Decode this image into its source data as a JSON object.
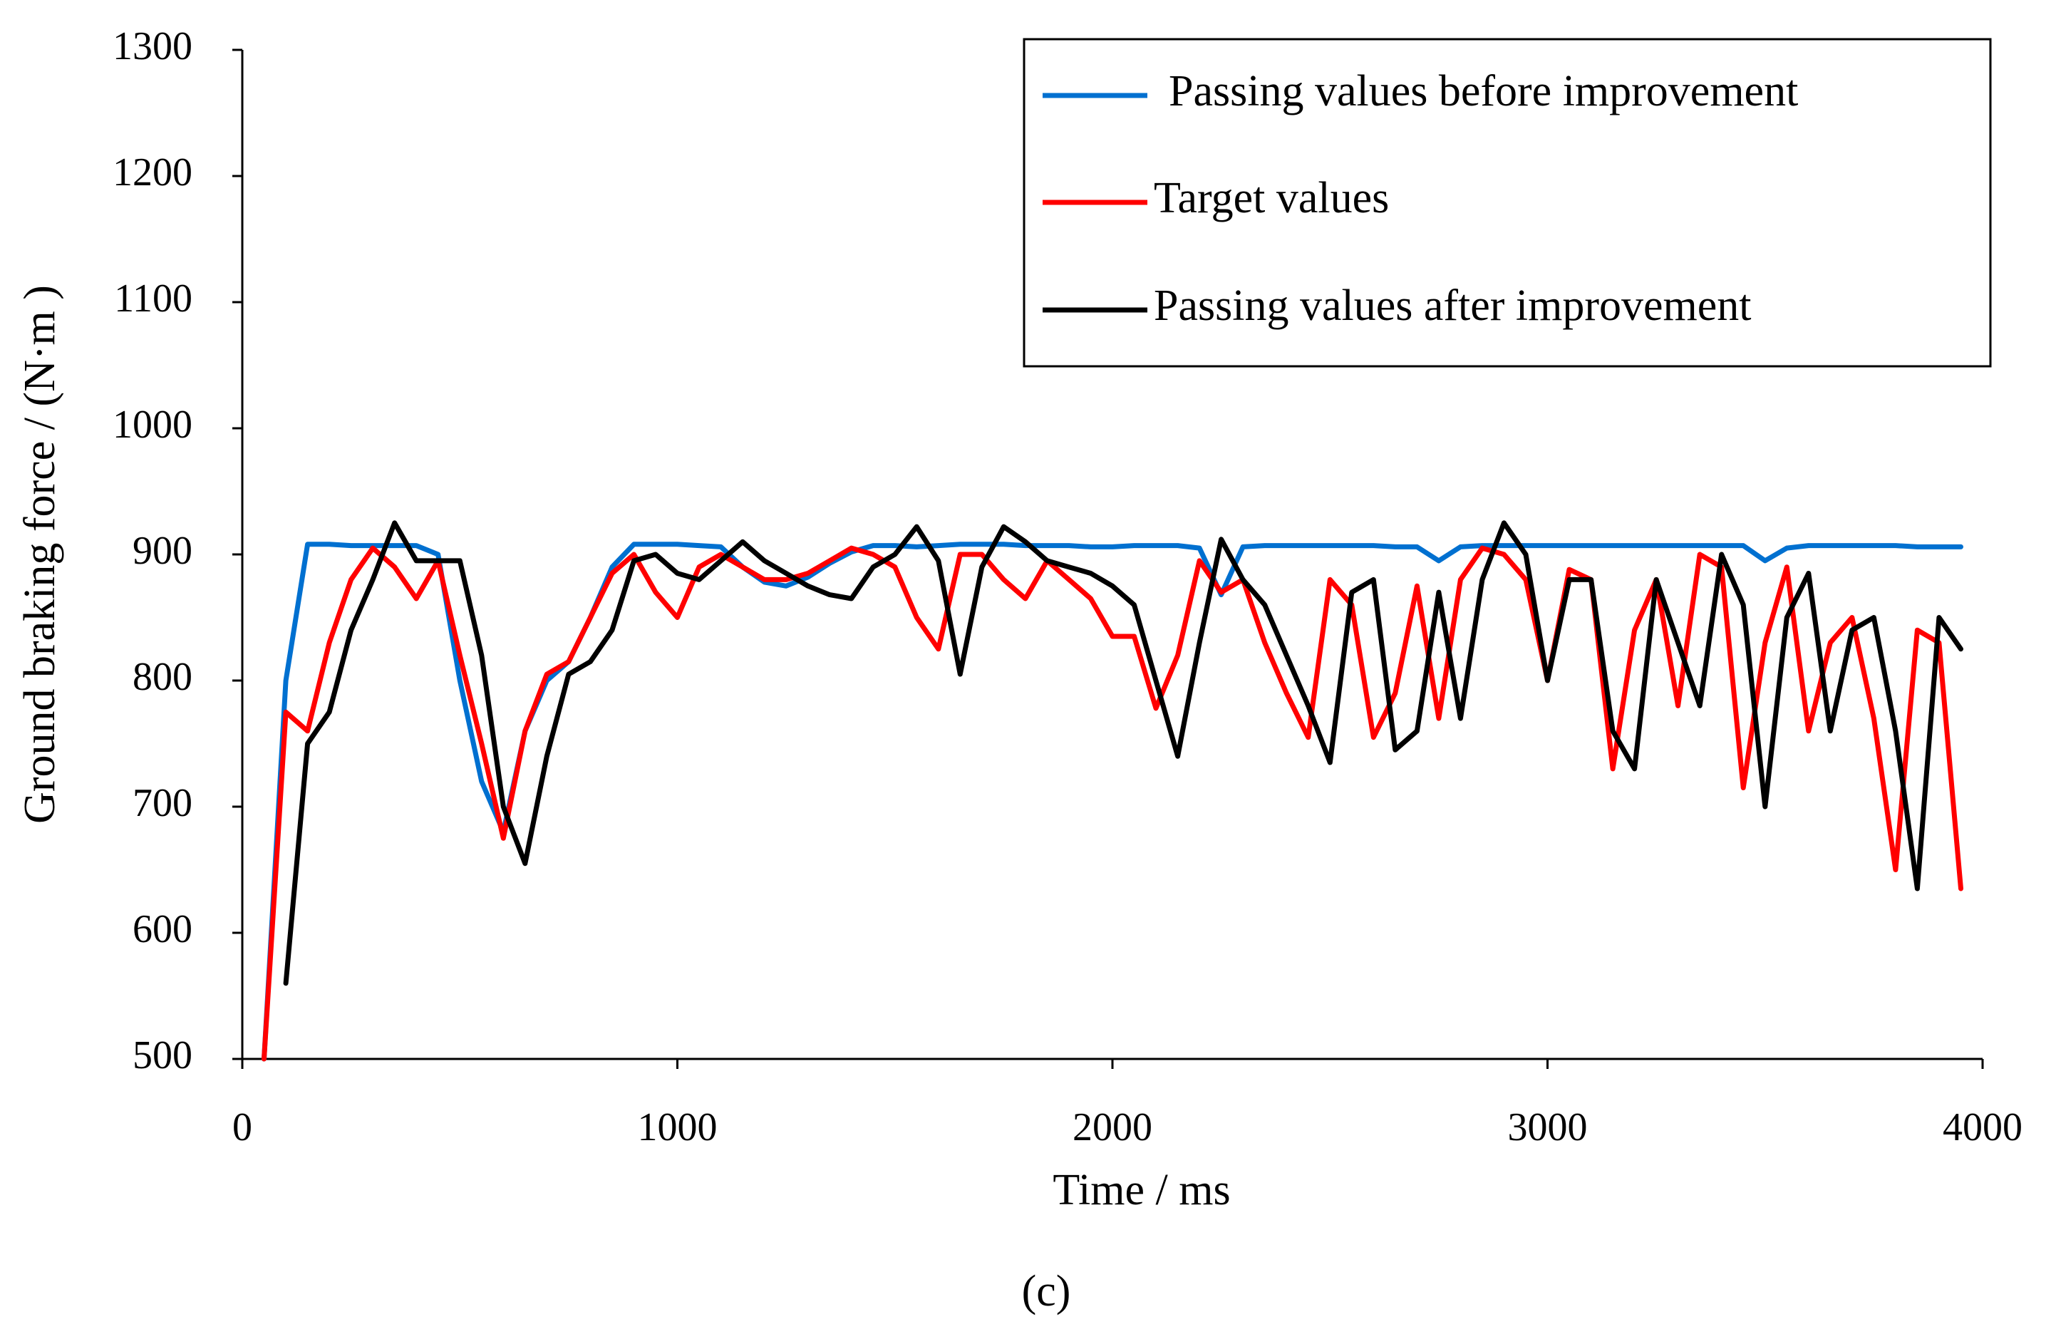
{
  "chart_data": {
    "type": "line",
    "caption": "(c)",
    "x_label": "Time / ms",
    "y_label": "Ground braking force / (N·m )",
    "xlim": [
      0,
      4000
    ],
    "xticks": [
      0,
      1000,
      2000,
      3000,
      4000
    ],
    "ylim": [
      500,
      1300
    ],
    "yticks": [
      500,
      600,
      700,
      800,
      900,
      1000,
      1100,
      1200,
      1300
    ],
    "grid": false,
    "legend": "upper right",
    "x": [
      50,
      100,
      150,
      200,
      250,
      300,
      350,
      400,
      450,
      500,
      550,
      600,
      650,
      700,
      750,
      800,
      850,
      900,
      950,
      1000,
      1050,
      1100,
      1150,
      1200,
      1250,
      1300,
      1350,
      1400,
      1450,
      1500,
      1550,
      1600,
      1650,
      1700,
      1750,
      1800,
      1850,
      1900,
      1950,
      2000,
      2050,
      2100,
      2150,
      2200,
      2250,
      2300,
      2350,
      2400,
      2450,
      2500,
      2550,
      2600,
      2650,
      2700,
      2750,
      2800,
      2850,
      2900,
      2950,
      3000,
      3050,
      3100,
      3150,
      3200,
      3250,
      3300,
      3350,
      3400,
      3450,
      3500,
      3550,
      3600,
      3650,
      3700,
      3750,
      3800,
      3850,
      3900,
      3950
    ],
    "series": [
      {
        "name": "Passing values before improvement",
        "color": "#0070d0",
        "values": [
          500,
          800,
          908,
          908,
          907,
          907,
          907,
          907,
          900,
          800,
          720,
          680,
          760,
          800,
          815,
          850,
          890,
          908,
          908,
          908,
          907,
          906,
          890,
          878,
          875,
          882,
          893,
          902,
          907,
          907,
          906,
          907,
          908,
          908,
          908,
          907,
          907,
          907,
          906,
          906,
          907,
          907,
          907,
          905,
          868,
          906,
          907,
          907,
          907,
          907,
          907,
          907,
          906,
          906,
          895,
          906,
          907,
          907,
          907,
          907,
          907,
          907,
          907,
          907,
          907,
          907,
          907,
          907,
          907,
          895,
          905,
          907,
          907,
          907,
          907,
          907,
          906,
          906,
          906
        ]
      },
      {
        "name": "Target values",
        "color": "#ff0000",
        "values": [
          500,
          775,
          760,
          830,
          880,
          905,
          890,
          865,
          895,
          820,
          750,
          675,
          760,
          805,
          815,
          850,
          885,
          900,
          870,
          850,
          890,
          900,
          890,
          880,
          880,
          885,
          895,
          905,
          900,
          890,
          850,
          825,
          900,
          900,
          880,
          865,
          895,
          880,
          865,
          835,
          835,
          778,
          820,
          895,
          870,
          880,
          830,
          790,
          755,
          880,
          860,
          755,
          790,
          875,
          770,
          880,
          905,
          900,
          880,
          800,
          888,
          880,
          730,
          840,
          880,
          780,
          900,
          890,
          715,
          830,
          890,
          760,
          830,
          850,
          770,
          650,
          840,
          830,
          635
        ]
      },
      {
        "name": "Passing values after improvement",
        "color": "#000000",
        "values": [
          null,
          560,
          750,
          775,
          840,
          880,
          925,
          895,
          895,
          895,
          820,
          700,
          655,
          740,
          805,
          815,
          840,
          895,
          900,
          885,
          880,
          895,
          910,
          895,
          885,
          875,
          868,
          865,
          890,
          900,
          922,
          895,
          805,
          890,
          922,
          910,
          895,
          890,
          885,
          875,
          860,
          800,
          740,
          830,
          912,
          880,
          860,
          820,
          780,
          735,
          870,
          880,
          745,
          760,
          870,
          770,
          880,
          925,
          900,
          800,
          880,
          880,
          760,
          730,
          880,
          830,
          780,
          900,
          860,
          700,
          850,
          885,
          760,
          840,
          850,
          760,
          635,
          850,
          825
        ]
      }
    ]
  }
}
